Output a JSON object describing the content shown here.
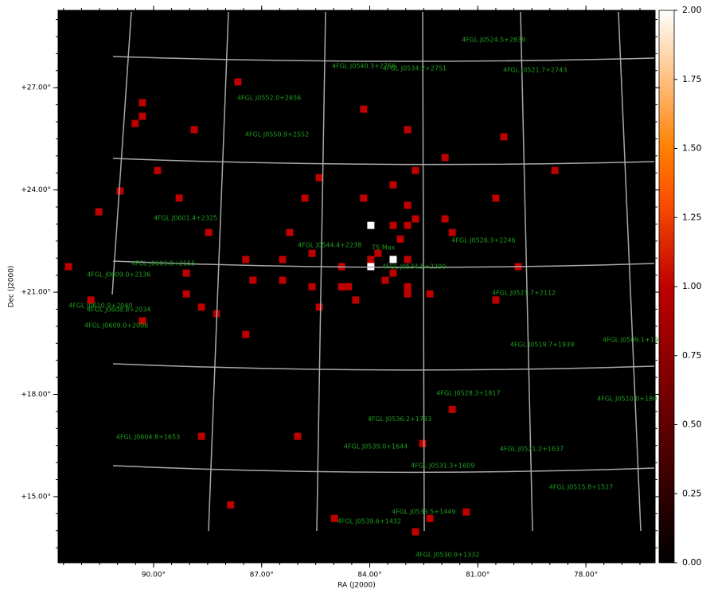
{
  "chart_data": {
    "type": "heatmap",
    "xlabel": "RA (J2000)",
    "ylabel": "Dec (J2000)",
    "xlim": [
      92.65,
      76.08
    ],
    "ylim": [
      13.06,
      29.27
    ],
    "xticks": [
      {
        "value": 90,
        "label": "90.00°"
      },
      {
        "value": 87,
        "label": "87.00°"
      },
      {
        "value": 84,
        "label": "84.00°"
      },
      {
        "value": 81,
        "label": "81.00°"
      },
      {
        "value": 78,
        "label": "78.00°"
      }
    ],
    "yticks": [
      {
        "value": 15,
        "label": "+15.00°"
      },
      {
        "value": 18,
        "label": "+18.00°"
      },
      {
        "value": 21,
        "label": "+21.00°"
      },
      {
        "value": 24,
        "label": "+24.00°"
      },
      {
        "value": 27,
        "label": "+27.00°"
      }
    ],
    "colormap": "gist_heat",
    "clim": [
      0,
      2
    ],
    "cticks": [
      {
        "value": 0,
        "label": "0.00"
      },
      {
        "value": 0.25,
        "label": "0.25"
      },
      {
        "value": 0.5,
        "label": "0.50"
      },
      {
        "value": 0.75,
        "label": "0.75"
      },
      {
        "value": 1,
        "label": "1.00"
      },
      {
        "value": 1.25,
        "label": "1.25"
      },
      {
        "value": 1.5,
        "label": "1.50"
      },
      {
        "value": 1.75,
        "label": "1.75"
      },
      {
        "value": 2,
        "label": "2.00"
      }
    ],
    "cells": {
      "x": [
        87.66,
        90.31,
        90.31,
        90.51,
        84.17,
        82.95,
        88.87,
        80.28,
        81.91,
        89.89,
        82.73,
        78.86,
        85.4,
        83.35,
        90.93,
        89.29,
        85.8,
        84.17,
        80.5,
        82.95,
        91.52,
        82.73,
        81.91,
        83.35,
        82.95,
        88.47,
        86.22,
        81.71,
        83.15,
        85.6,
        83.77,
        87.44,
        86.42,
        83.97,
        82.95,
        92.36,
        84.78,
        79.88,
        89.09,
        83.35,
        87.24,
        86.42,
        83.57,
        85.6,
        84.78,
        84.59,
        82.95,
        89.09,
        82.95,
        82.33,
        91.74,
        84.39,
        80.5,
        88.67,
        85.4,
        88.25,
        90.31,
        87.44,
        81.71,
        88.67,
        86.0,
        82.53,
        87.86,
        81.32,
        84.98,
        82.33,
        82.73,
        83.97,
        83.35,
        83.97
      ],
      "y": [
        27.17,
        26.56,
        26.16,
        25.95,
        26.37,
        25.77,
        25.77,
        25.56,
        24.95,
        24.57,
        24.57,
        24.57,
        24.36,
        24.15,
        23.97,
        23.76,
        23.76,
        23.76,
        23.76,
        23.55,
        23.36,
        23.15,
        23.15,
        22.96,
        22.96,
        22.75,
        22.75,
        22.75,
        22.56,
        22.14,
        22.14,
        21.96,
        21.96,
        21.96,
        21.96,
        21.75,
        21.75,
        21.75,
        21.56,
        21.56,
        21.35,
        21.35,
        21.35,
        21.16,
        21.16,
        21.16,
        21.16,
        20.95,
        20.95,
        20.95,
        20.77,
        20.77,
        20.77,
        20.56,
        20.56,
        20.37,
        20.16,
        19.76,
        17.56,
        16.77,
        16.77,
        16.56,
        14.76,
        14.55,
        14.36,
        14.36,
        13.97,
        22.96,
        21.96,
        21.75
      ],
      "values": [
        1,
        1,
        1,
        1,
        1,
        1,
        1,
        1,
        1,
        1,
        1,
        1,
        1,
        1,
        1,
        1,
        1,
        1,
        1,
        1,
        1,
        1,
        1,
        1,
        1,
        1,
        1,
        1,
        1,
        1,
        1,
        1,
        1,
        1,
        1,
        1,
        1,
        1,
        1,
        1,
        1,
        1,
        1,
        1,
        1,
        1,
        1,
        1,
        1,
        1,
        1,
        1,
        1,
        1,
        1,
        0.9,
        1,
        1,
        1,
        1,
        1,
        1,
        1,
        1,
        1,
        1,
        1,
        2,
        2,
        2
      ]
    },
    "annotation_color": "#1e9e1e",
    "annotations": [
      {
        "text": "4FGL J0524.5+2839",
        "x": 81.45,
        "y": 28.41
      },
      {
        "text": "4FGL J0540.3+2756",
        "x": 85.05,
        "y": 27.63
      },
      {
        "text": "4FGL J0534.2+2751",
        "x": 83.64,
        "y": 27.56
      },
      {
        "text": "4FGL J0521.7+2743",
        "x": 80.3,
        "y": 27.52
      },
      {
        "text": "4FGL J0552.0+2656",
        "x": 87.68,
        "y": 26.7
      },
      {
        "text": "4FGL J0550.9+2552",
        "x": 87.46,
        "y": 25.63
      },
      {
        "text": "4FGL J0601.4+2325",
        "x": 90.0,
        "y": 23.17
      },
      {
        "text": "4FGL J0544.4+2238",
        "x": 86.0,
        "y": 22.38
      },
      {
        "text": "TS Max",
        "x": 83.94,
        "y": 22.31
      },
      {
        "text": "4FGL J0526.3+2246",
        "x": 81.73,
        "y": 22.52
      },
      {
        "text": "4FGL J0603.8+2155",
        "x": 90.62,
        "y": 21.84
      },
      {
        "text": "4FGL J0534.5+2200",
        "x": 83.66,
        "y": 21.75
      },
      {
        "text": "4FGL J0609.0+2136",
        "x": 91.85,
        "y": 21.51
      },
      {
        "text": "4FGL J0521.7+2112",
        "x": 80.61,
        "y": 20.98
      },
      {
        "text": "4FGL J0610.9+2040",
        "x": 92.36,
        "y": 20.6
      },
      {
        "text": "4FGL J0608.8+2034",
        "x": 91.85,
        "y": 20.49
      },
      {
        "text": "4FGL J0609.0+2006",
        "x": 91.92,
        "y": 20.02
      },
      {
        "text": "4FGL J0519.7+1939",
        "x": 80.1,
        "y": 19.46
      },
      {
        "text": "4FGL J0509.1+19",
        "x": 77.54,
        "y": 19.6
      },
      {
        "text": "4FGL J0528.3+1817",
        "x": 82.15,
        "y": 18.03
      },
      {
        "text": "4FGL J0510.0+180",
        "x": 77.69,
        "y": 17.87
      },
      {
        "text": "4FGL J0536.2+1733",
        "x": 84.06,
        "y": 17.28
      },
      {
        "text": "4FGL J0604.8+1653",
        "x": 91.04,
        "y": 16.75
      },
      {
        "text": "4FGL J0539.0+1644",
        "x": 84.72,
        "y": 16.47
      },
      {
        "text": "4FGL J0521.2+1637",
        "x": 80.39,
        "y": 16.4
      },
      {
        "text": "4FGL J0531.3+1609",
        "x": 82.86,
        "y": 15.91
      },
      {
        "text": "4FGL J0515.8+1527",
        "x": 79.02,
        "y": 15.28
      },
      {
        "text": "4FGL J0533.5+1449",
        "x": 83.39,
        "y": 14.55
      },
      {
        "text": "4FGL J0539.6+1432",
        "x": 84.9,
        "y": 14.27
      },
      {
        "text": "4FGL J0530.9+1332",
        "x": 82.73,
        "y": 13.29
      }
    ]
  }
}
